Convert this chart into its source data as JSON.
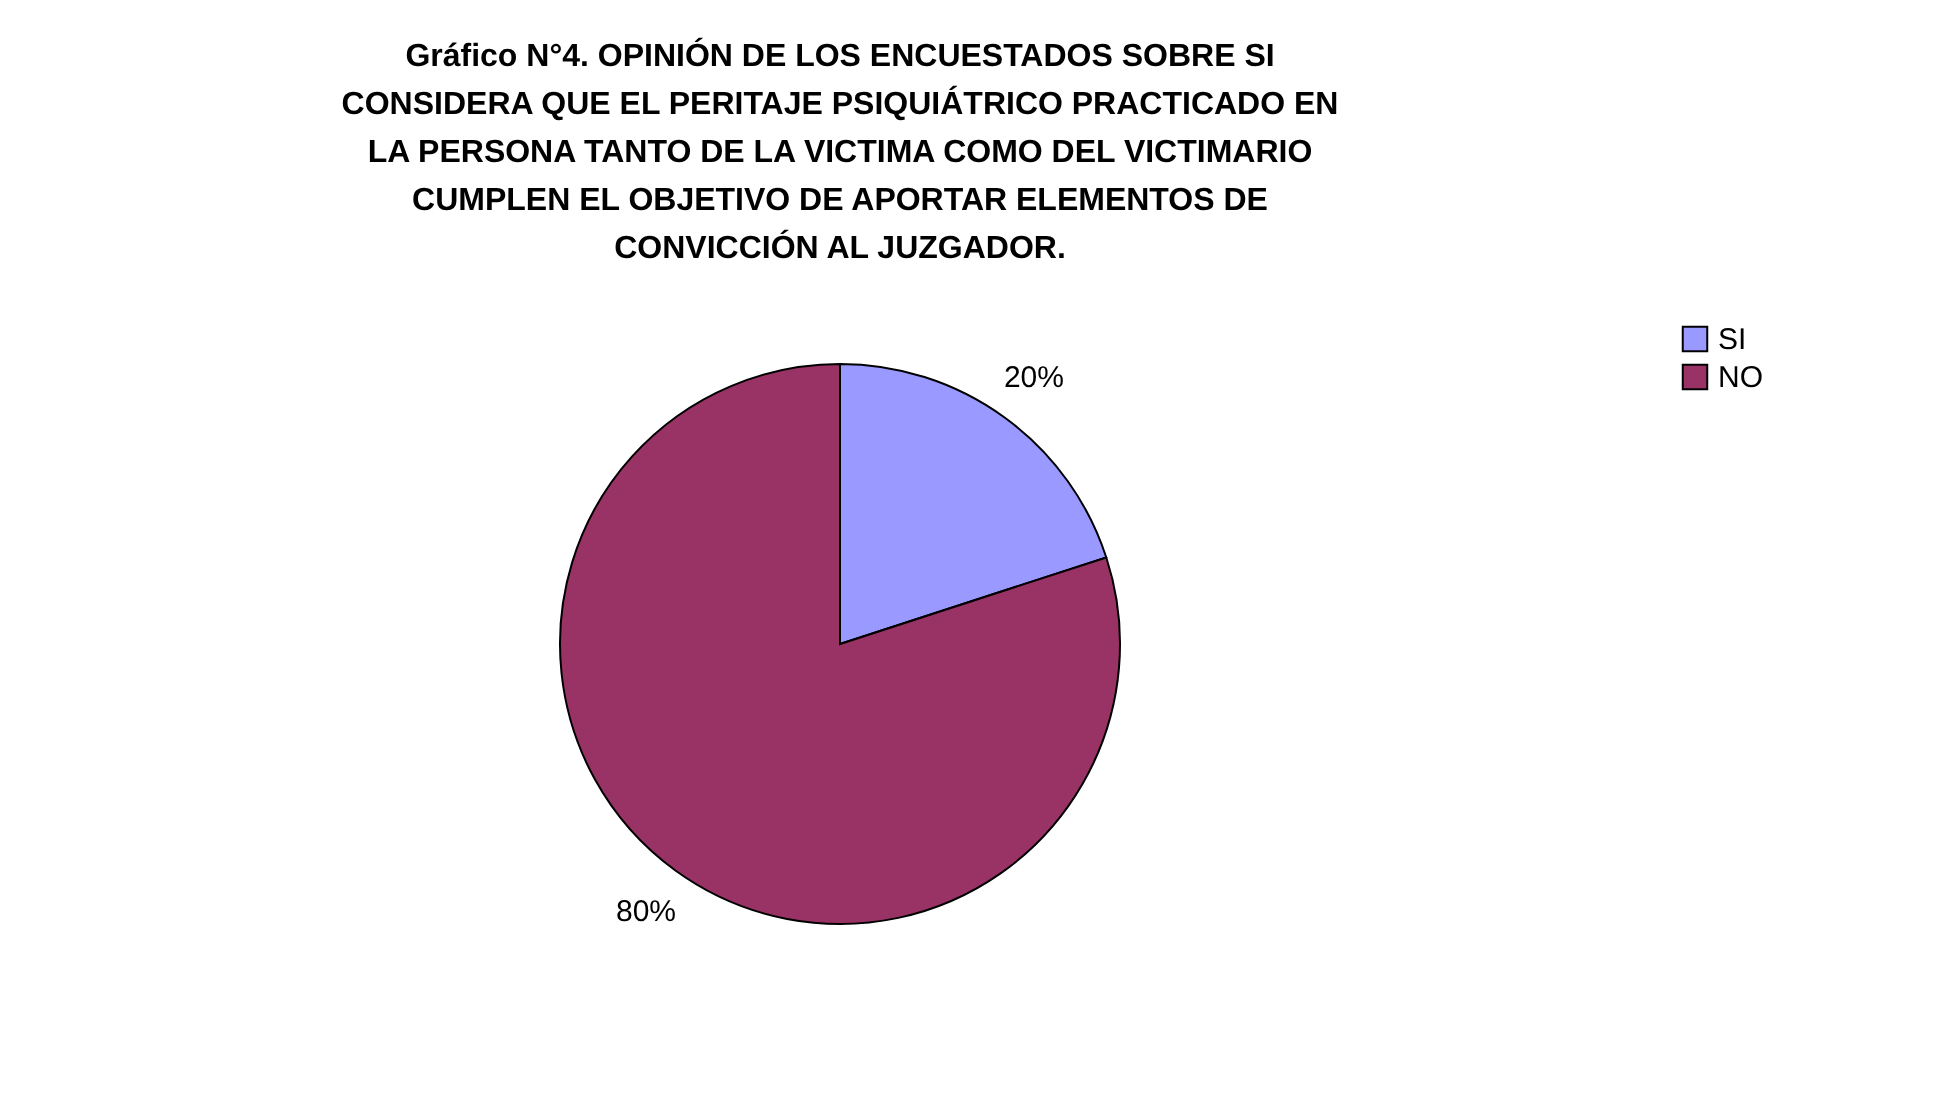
{
  "chart_data": {
    "type": "pie",
    "title": "Gráfico N°4. OPINIÓN DE LOS ENCUESTADOS SOBRE SI CONSIDERA QUE EL PERITAJE PSIQUIÁTRICO PRACTICADO EN LA PERSONA TANTO DE LA VICTIMA COMO DEL VICTIMARIO CUMPLEN EL OBJETIVO DE APORTAR ELEMENTOS DE CONVICCIÓN AL JUZGADOR.",
    "categories": [
      "SI",
      "NO"
    ],
    "values": [
      20,
      80
    ],
    "value_labels": [
      "20%",
      "80%"
    ],
    "colors": [
      "#9999ff",
      "#993366"
    ],
    "legend": "right"
  }
}
